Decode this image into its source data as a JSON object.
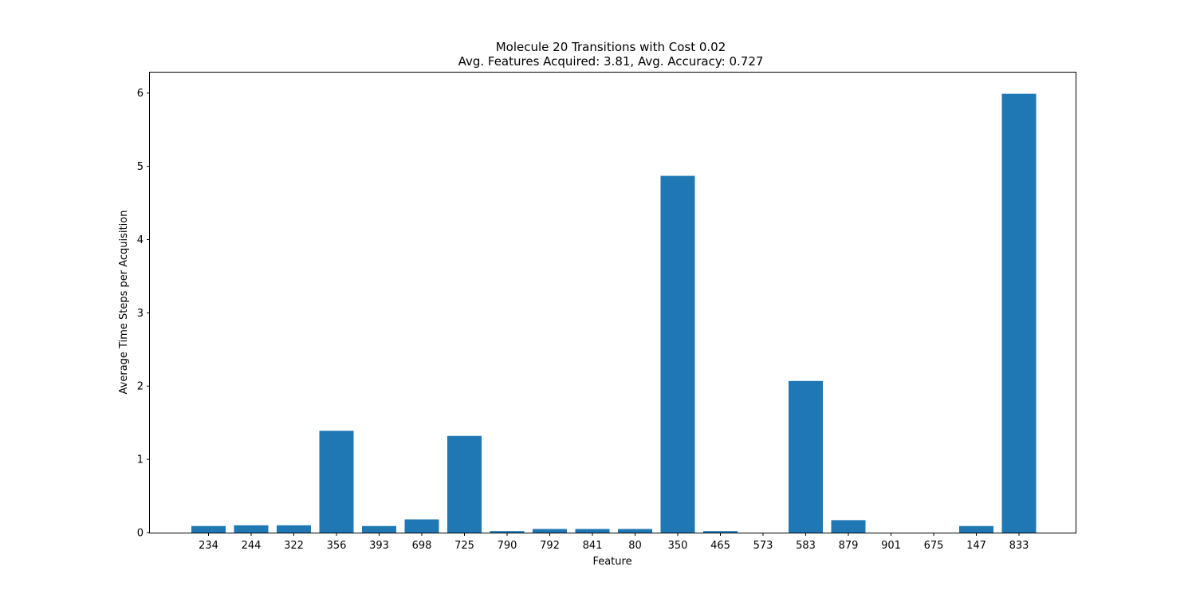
{
  "chart_data": {
    "type": "bar",
    "title": "Molecule 20 Transitions with Cost 0.02",
    "subtitle": "Avg. Features Acquired: 3.81, Avg. Accuracy: 0.727",
    "xlabel": "Feature",
    "ylabel": "Average Time Steps per Acquisition",
    "categories": [
      "234",
      "244",
      "322",
      "356",
      "393",
      "698",
      "725",
      "790",
      "792",
      "841",
      "80",
      "350",
      "465",
      "573",
      "583",
      "879",
      "901",
      "675",
      "147",
      "833"
    ],
    "values": [
      0.09,
      0.1,
      0.1,
      1.39,
      0.09,
      0.18,
      1.32,
      0.02,
      0.05,
      0.05,
      0.05,
      4.87,
      0.02,
      0.0,
      2.07,
      0.17,
      0.0,
      0.0,
      0.09,
      5.99
    ],
    "ylim": [
      0,
      6.28
    ],
    "yticks": [
      "0",
      "1",
      "2",
      "3",
      "4",
      "5",
      "6"
    ],
    "bar_color": "#1f77b4",
    "grid": false,
    "legend": "none"
  }
}
